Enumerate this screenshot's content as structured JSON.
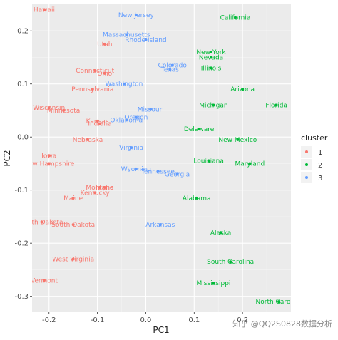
{
  "chart_data": {
    "type": "scatter",
    "title": "",
    "xlabel": "PC1",
    "ylabel": "PC2",
    "xlim": [
      -0.235,
      0.3
    ],
    "ylim": [
      -0.33,
      0.25
    ],
    "xticks": [
      -0.2,
      -0.1,
      0.0,
      0.1,
      0.2
    ],
    "xtick_labels": [
      "-0.2",
      "-0.1",
      "0.0",
      "0.1",
      "0.2"
    ],
    "yticks": [
      -0.3,
      -0.2,
      -0.1,
      0.0,
      0.1,
      0.2
    ],
    "ytick_labels": [
      "-0.3",
      "-0.2",
      "-0.1",
      "0.0",
      "0.1",
      "0.2"
    ],
    "grid": true,
    "legend": {
      "title": "cluster",
      "placement": "right",
      "entries": [
        {
          "label": "1",
          "color": "#F8766D"
        },
        {
          "label": "2",
          "color": "#00BA38"
        },
        {
          "label": "3",
          "color": "#619CFF"
        }
      ]
    },
    "series": [
      {
        "name": "1",
        "color": "#F8766D",
        "points": [
          {
            "label": "Hawaii",
            "x": -0.21,
            "y": 0.24
          },
          {
            "label": "Utah",
            "x": -0.085,
            "y": 0.175
          },
          {
            "label": "Connecticut",
            "x": -0.105,
            "y": 0.125
          },
          {
            "label": "Ohio",
            "x": -0.085,
            "y": 0.12
          },
          {
            "label": "Pennsylvania",
            "x": -0.11,
            "y": 0.09
          },
          {
            "label": "Wisconsin",
            "x": -0.2,
            "y": 0.055
          },
          {
            "label": "Minnesota",
            "x": -0.17,
            "y": 0.05
          },
          {
            "label": "Kansas",
            "x": -0.1,
            "y": 0.03
          },
          {
            "label": "Indiana",
            "x": -0.095,
            "y": 0.025
          },
          {
            "label": "Nebraska",
            "x": -0.12,
            "y": -0.005
          },
          {
            "label": "Iowa",
            "x": -0.2,
            "y": -0.035
          },
          {
            "label": "New Hampshire",
            "x": -0.2,
            "y": -0.05
          },
          {
            "label": "Montana",
            "x": -0.095,
            "y": -0.095
          },
          {
            "label": "Idaho",
            "x": -0.085,
            "y": -0.095
          },
          {
            "label": "Kentucky",
            "x": -0.105,
            "y": -0.105
          },
          {
            "label": "Maine",
            "x": -0.15,
            "y": -0.115
          },
          {
            "label": "North Dakota",
            "x": -0.215,
            "y": -0.16
          },
          {
            "label": "South Dakota",
            "x": -0.15,
            "y": -0.165
          },
          {
            "label": "West Virginia",
            "x": -0.15,
            "y": -0.23
          },
          {
            "label": "Vermont",
            "x": -0.21,
            "y": -0.27
          }
        ]
      },
      {
        "name": "2",
        "color": "#00BA38",
        "points": [
          {
            "label": "California",
            "x": 0.185,
            "y": 0.225
          },
          {
            "label": "New York",
            "x": 0.135,
            "y": 0.16
          },
          {
            "label": "Nevada",
            "x": 0.135,
            "y": 0.15
          },
          {
            "label": "Illinois",
            "x": 0.135,
            "y": 0.13
          },
          {
            "label": "Arizona",
            "x": 0.2,
            "y": 0.09
          },
          {
            "label": "Florida",
            "x": 0.27,
            "y": 0.06
          },
          {
            "label": "Michigan",
            "x": 0.14,
            "y": 0.06
          },
          {
            "label": "Delaware",
            "x": 0.11,
            "y": 0.015
          },
          {
            "label": "New Mexico",
            "x": 0.19,
            "y": -0.005
          },
          {
            "label": "Louisiana",
            "x": 0.13,
            "y": -0.045
          },
          {
            "label": "Maryland",
            "x": 0.215,
            "y": -0.05
          },
          {
            "label": "Alabama",
            "x": 0.105,
            "y": -0.115
          },
          {
            "label": "Alaska",
            "x": 0.155,
            "y": -0.18
          },
          {
            "label": "South Carolina",
            "x": 0.175,
            "y": -0.235
          },
          {
            "label": "Mississippi",
            "x": 0.14,
            "y": -0.275
          },
          {
            "label": "North Carolina",
            "x": 0.275,
            "y": -0.31
          }
        ]
      },
      {
        "name": "3",
        "color": "#619CFF",
        "points": [
          {
            "label": "New Jersey",
            "x": -0.02,
            "y": 0.23
          },
          {
            "label": "Massachusetts",
            "x": -0.04,
            "y": 0.193
          },
          {
            "label": "Rhode Island",
            "x": 0.0,
            "y": 0.183
          },
          {
            "label": "Colorado",
            "x": 0.055,
            "y": 0.135
          },
          {
            "label": "Texas",
            "x": 0.05,
            "y": 0.127
          },
          {
            "label": "Washington",
            "x": -0.045,
            "y": 0.1
          },
          {
            "label": "Missouri",
            "x": 0.01,
            "y": 0.052
          },
          {
            "label": "Oregon",
            "x": -0.02,
            "y": 0.037
          },
          {
            "label": "Oklahoma",
            "x": -0.04,
            "y": 0.032
          },
          {
            "label": "Virginia",
            "x": -0.03,
            "y": -0.02
          },
          {
            "label": "Wyoming",
            "x": -0.02,
            "y": -0.06
          },
          {
            "label": "Tennessee",
            "x": 0.025,
            "y": -0.065
          },
          {
            "label": "Georgia",
            "x": 0.065,
            "y": -0.07
          },
          {
            "label": "Arkansas",
            "x": 0.03,
            "y": -0.165
          }
        ]
      }
    ]
  },
  "watermark": "知乎 @QQ2S0828数据分析"
}
